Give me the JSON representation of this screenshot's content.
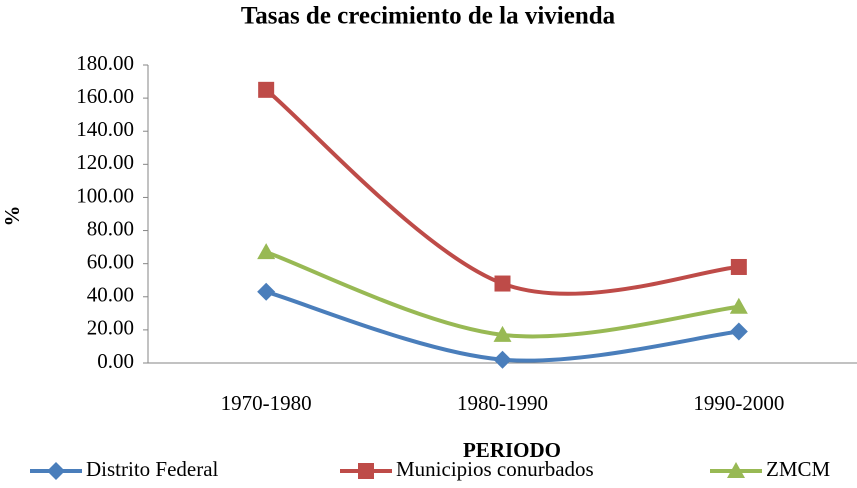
{
  "chart_data": {
    "type": "line",
    "title": "Tasas de crecimiento de la vivienda",
    "x_label": "PERIODO",
    "y_label": "%",
    "categories": [
      "1970-1980",
      "1980-1990",
      "1990-2000"
    ],
    "series": [
      {
        "name": "Distrito Federal",
        "color": "#4a7ebb",
        "values": [
          43,
          2,
          19
        ]
      },
      {
        "name": "Municipios conurbados",
        "color": "#be4b48",
        "values": [
          165,
          48,
          58
        ]
      },
      {
        "name": "ZMCM",
        "color": "#98b954",
        "values": [
          67,
          17,
          34
        ]
      }
    ],
    "ylim": [
      0,
      180
    ],
    "yticks": [
      {
        "value": 0,
        "label": "0.00"
      },
      {
        "value": 20,
        "label": "20.00"
      },
      {
        "value": 40,
        "label": "40.00"
      },
      {
        "value": 60,
        "label": "60.00"
      },
      {
        "value": 80,
        "label": "80.00"
      },
      {
        "value": 100,
        "label": "100.00"
      },
      {
        "value": 120,
        "label": "120.00"
      },
      {
        "value": 140,
        "label": "140.00"
      },
      {
        "value": 160,
        "label": "160.00"
      },
      {
        "value": 180,
        "label": "180.00"
      }
    ],
    "grid": false,
    "smooth": true,
    "legend": "bottom"
  }
}
